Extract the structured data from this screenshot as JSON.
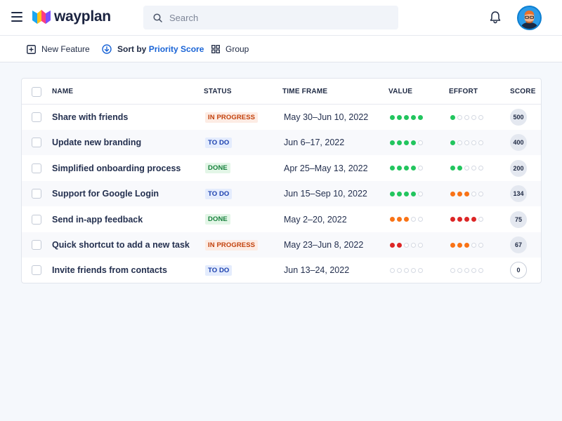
{
  "app": {
    "brand": "wayplan"
  },
  "header": {
    "search_placeholder": "Search"
  },
  "toolbar": {
    "new_feature": "New Feature",
    "sort_prefix": "Sort by",
    "sort_value": "Priority Score",
    "group": "Group"
  },
  "colors": {
    "accent": "#1a64d6",
    "green": "#22c55e",
    "orange": "#f97316",
    "red": "#dc2626"
  },
  "table": {
    "columns": {
      "name": "NAME",
      "status": "STATUS",
      "timeframe": "TIME FRAME",
      "value": "VALUE",
      "effort": "EFFORT",
      "score": "SCORE"
    },
    "rows": [
      {
        "name": "Share with friends",
        "status": "IN PROGRESS",
        "status_type": "inprogress",
        "timeframe": "May 30–Jun 10, 2022",
        "value": 5,
        "value_color": "green",
        "effort": 1,
        "effort_color": "green",
        "score": "500"
      },
      {
        "name": "Update new branding",
        "status": "TO DO",
        "status_type": "todo",
        "timeframe": "Jun 6–17, 2022",
        "value": 4,
        "value_color": "green",
        "effort": 1,
        "effort_color": "green",
        "score": "400"
      },
      {
        "name": "Simplified onboarding process",
        "status": "DONE",
        "status_type": "done",
        "timeframe": "Apr 25–May 13, 2022",
        "value": 4,
        "value_color": "green",
        "effort": 2,
        "effort_color": "green",
        "score": "200"
      },
      {
        "name": "Support for Google Login",
        "status": "TO DO",
        "status_type": "todo",
        "timeframe": "Jun 15–Sep 10, 2022",
        "value": 4,
        "value_color": "green",
        "effort": 3,
        "effort_color": "orange",
        "score": "134"
      },
      {
        "name": "Send in-app feedback",
        "status": "DONE",
        "status_type": "done",
        "timeframe": "May 2–20, 2022",
        "value": 3,
        "value_color": "orange",
        "effort": 4,
        "effort_color": "red",
        "score": "75"
      },
      {
        "name": "Quick shortcut to add a new task",
        "status": "IN PROGRESS",
        "status_type": "inprogress",
        "timeframe": "May 23–Jun 8, 2022",
        "value": 2,
        "value_color": "red",
        "effort": 3,
        "effort_color": "orange",
        "score": "67"
      },
      {
        "name": "Invite friends from contacts",
        "status": "TO DO",
        "status_type": "todo",
        "timeframe": "Jun 13–24, 2022",
        "value": 0,
        "value_color": "green",
        "effort": 0,
        "effort_color": "green",
        "score": "0"
      }
    ]
  }
}
